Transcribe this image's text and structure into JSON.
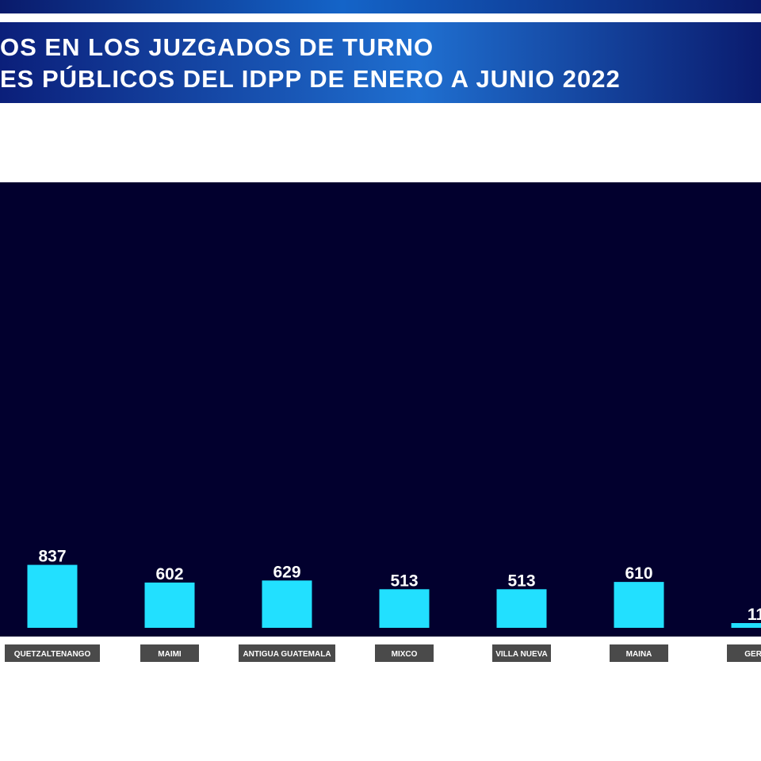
{
  "header": {
    "title_line1": "OS EN LOS JUZGADOS DE TURNO",
    "title_line2": "ES PÚBLICOS DEL IDPP DE ENERO A JUNIO 2022"
  },
  "colors": {
    "panel_bg": "#02002e",
    "bar": "#22e0ff",
    "category_box": "#4a4a4a",
    "banner": "#1f6fd0"
  },
  "chart_data": {
    "type": "bar",
    "title": "",
    "xlabel": "",
    "ylabel": "",
    "ylim": [
      0,
      7500
    ],
    "grid": false,
    "categories": [
      "QUETZALTENANGO",
      "MAIMI",
      "ANTIGUA GUATEMALA",
      "MIXCO",
      "VILLA NUEVA",
      "MAINA",
      "GERO"
    ],
    "values": [
      837,
      602,
      629,
      513,
      513,
      610,
      11
    ],
    "labels": [
      "837",
      "602",
      "629",
      "513",
      "513",
      "610",
      "11"
    ]
  }
}
